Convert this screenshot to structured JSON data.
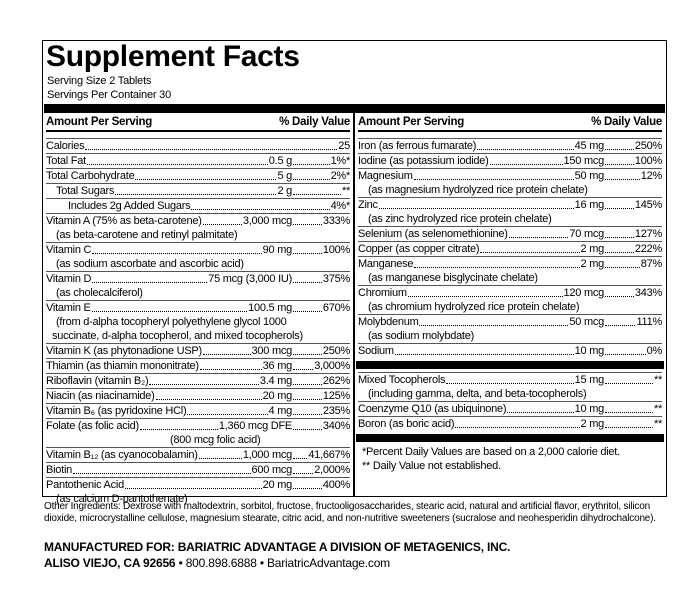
{
  "header": {
    "title": "Supplement Facts",
    "serving_size": "Serving Size 2 Tablets",
    "servings_per_container": "Servings Per Container 30"
  },
  "left": {
    "header": [
      "Amount Per Serving",
      "% Daily Value"
    ],
    "rows": [
      {
        "name": "Calories",
        "amount": "25"
      },
      {
        "name": "Total Fat",
        "amount": "0.5 g",
        "dv": "1%*"
      },
      {
        "name": "Total Carbohydrate",
        "amount": "5 g",
        "dv": "2%*"
      },
      {
        "name": "Total Sugars",
        "amount": "2 g",
        "dv": "**"
      },
      {
        "name": "Includes 2g Added Sugars",
        "dv": "4%*"
      },
      {
        "name": "Vitamin A (75% as beta-carotene)",
        "amount": "3,000 mcg",
        "dv": "333%",
        "notes": [
          "(as beta-carotene and retinyl palmitate)"
        ]
      },
      {
        "name": "Vitamin C",
        "amount": "90 mg",
        "dv": "100%",
        "notes": [
          "(as sodium ascorbate and ascorbic acid)"
        ]
      },
      {
        "name": "Vitamin D",
        "amount": "75 mcg (3,000 IU)",
        "dv": "375%",
        "notes": [
          "(as cholecalciferol)"
        ]
      },
      {
        "name": "Vitamin E",
        "amount": "100.5 mg",
        "dv": "670%",
        "notes": [
          "(from d-alpha tocopheryl polyethylene glycol 1000",
          "succinate, d-alpha tocopherol, and mixed tocopherols)"
        ]
      },
      {
        "name": "Vitamin K (as phytonadione USP)",
        "amount": "300 mcg",
        "dv": "250%"
      },
      {
        "name": "Thiamin (as thiamin mononitrate)",
        "amount": "36 mg",
        "dv": "3,000%"
      },
      {
        "name": "Riboflavin (vitamin B₂)",
        "amount": "3.4 mg",
        "dv": "262%"
      },
      {
        "name": "Niacin (as niacinamide)",
        "amount": "20 mg",
        "dv": "125%"
      },
      {
        "name": "Vitamin B₆ (as pyridoxine HCl)",
        "amount": "4 mg",
        "dv": "235%"
      },
      {
        "name": "Folate (as folic acid)",
        "amount": "1,360 mcg DFE",
        "dv": "340%",
        "notes": [
          "(800 mcg folic acid)"
        ]
      },
      {
        "name": "Vitamin B₁₂ (as cyanocobalamin)",
        "amount": "1,000 mcg",
        "dv": "41,667%"
      },
      {
        "name": "Biotin",
        "amount": "600 mcg",
        "dv": "2,000%"
      },
      {
        "name": "Pantothenic Acid",
        "amount": "20 mg",
        "dv": "400%",
        "notes": [
          "(as calcium D-pantothenate)"
        ]
      }
    ]
  },
  "right": {
    "header": [
      "Amount Per Serving",
      "% Daily Value"
    ],
    "rows": [
      {
        "name": "Iron (as ferrous fumarate)",
        "amount": "45 mg",
        "dv": "250%"
      },
      {
        "name": "Iodine (as potassium iodide)",
        "amount": "150 mcg",
        "dv": "100%"
      },
      {
        "name": "Magnesium",
        "amount": "50 mg",
        "dv": "12%",
        "notes": [
          "(as magnesium hydrolyzed rice protein chelate)"
        ]
      },
      {
        "name": "Zinc",
        "amount": "16 mg",
        "dv": "145%",
        "notes": [
          "(as zinc hydrolyzed rice protein chelate)"
        ]
      },
      {
        "name": "Selenium (as selenomethionine)",
        "amount": "70 mcg",
        "dv": "127%"
      },
      {
        "name": "Copper (as copper citrate)",
        "amount": "2 mg",
        "dv": "222%"
      },
      {
        "name": "Manganese",
        "amount": "2 mg",
        "dv": "87%",
        "notes": [
          "(as manganese bisglycinate chelate)"
        ]
      },
      {
        "name": "Chromium",
        "amount": "120 mcg",
        "dv": "343%",
        "notes": [
          "(as chromium hydrolyzed rice protein chelate)"
        ]
      },
      {
        "name": "Molybdenum",
        "amount": "50 mcg",
        "dv": "111%",
        "notes": [
          "(as sodium molybdate)"
        ]
      },
      {
        "name": "Sodium",
        "amount": "10 mg",
        "dv": "0%"
      }
    ],
    "other_rows": [
      {
        "name": "Mixed Tocopherols",
        "amount": "15 mg",
        "dv": "**",
        "notes": [
          "(including gamma, delta, and beta-tocopherols)"
        ]
      },
      {
        "name": "Coenzyme Q10 (as ubiquinone)",
        "amount": "10 mg",
        "dv": "**"
      },
      {
        "name": "Boron (as boric acid)",
        "amount": "2 mg",
        "dv": "**"
      }
    ],
    "footnotes": [
      "*Percent Daily Values are based on a 2,000 calorie diet.",
      "** Daily Value not established."
    ]
  },
  "other_ingredients": "Other Ingredients: Dextrose with maltodextrin, sorbitol, fructose, fructooligosaccharides, stearic acid, natural and artificial flavor, erythritol, silicon dioxide, microcrystalline cellulose, magnesium stearate, citric acid, and non-nutritive sweeteners (sucralose and neohesperidin dihydrochalcone).",
  "manufacturer": {
    "line1": "MANUFACTURED FOR: BARIATRIC ADVANTAGE A DIVISION OF METAGENICS, INC.",
    "line2": [
      "ALISO VIEJO, CA 92656",
      "• 800.898.6888 • BariatricAdvantage.com"
    ]
  }
}
